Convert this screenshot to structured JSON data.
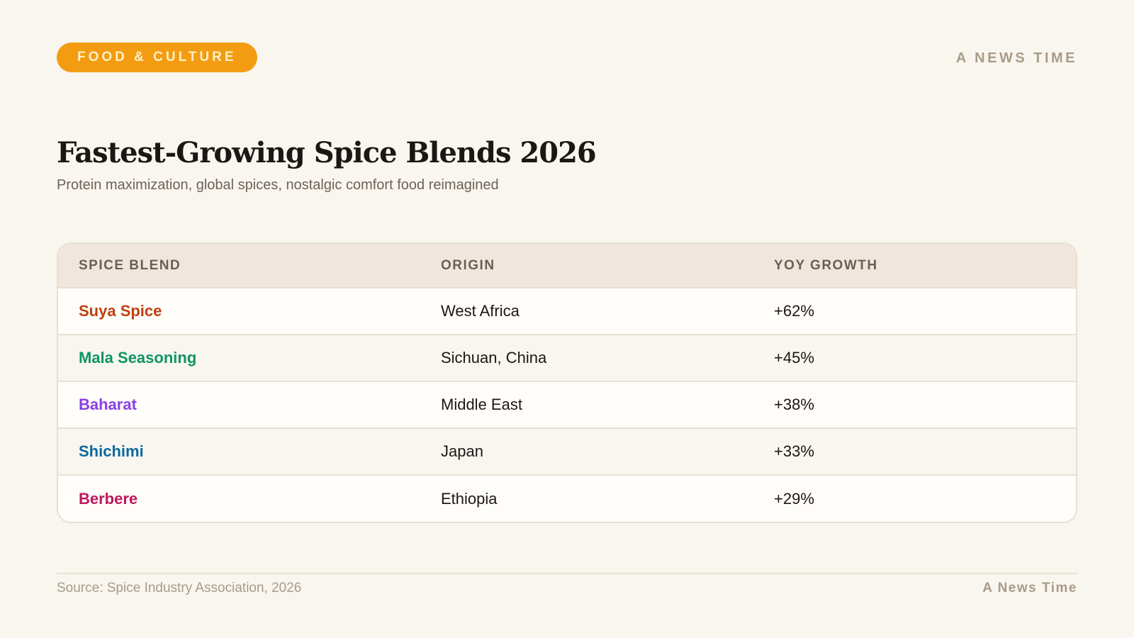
{
  "header": {
    "category_badge": "FOOD & CULTURE",
    "brand": "A NEWS TIME"
  },
  "main": {
    "title": "Fastest-Growing Spice Blends 2026",
    "subtitle": "Protein maximization, global spices, nostalgic comfort food reimagined"
  },
  "table": {
    "columns": [
      "SPICE BLEND",
      "ORIGIN",
      "YOY GROWTH"
    ],
    "rows": [
      {
        "blend": "Suya Spice",
        "origin": "West Africa",
        "growth": "+62%",
        "color": "#c0400f"
      },
      {
        "blend": "Mala Seasoning",
        "origin": "Sichuan, China",
        "growth": "+45%",
        "color": "#0e9466"
      },
      {
        "blend": "Baharat",
        "origin": "Middle East",
        "growth": "+38%",
        "color": "#8a3fe6"
      },
      {
        "blend": "Shichimi",
        "origin": "Japan",
        "growth": "+33%",
        "color": "#0a6a9c"
      },
      {
        "blend": "Berbere",
        "origin": "Ethiopia",
        "growth": "+29%",
        "color": "#be185d"
      }
    ]
  },
  "footer": {
    "source": "Source: Spice Industry Association, 2026",
    "brand": "A News Time"
  },
  "colors": {
    "background": "#f9f5ef",
    "badge": "#f39c12",
    "badge_text": "#fdf0c4",
    "muted": "#a89c88"
  }
}
